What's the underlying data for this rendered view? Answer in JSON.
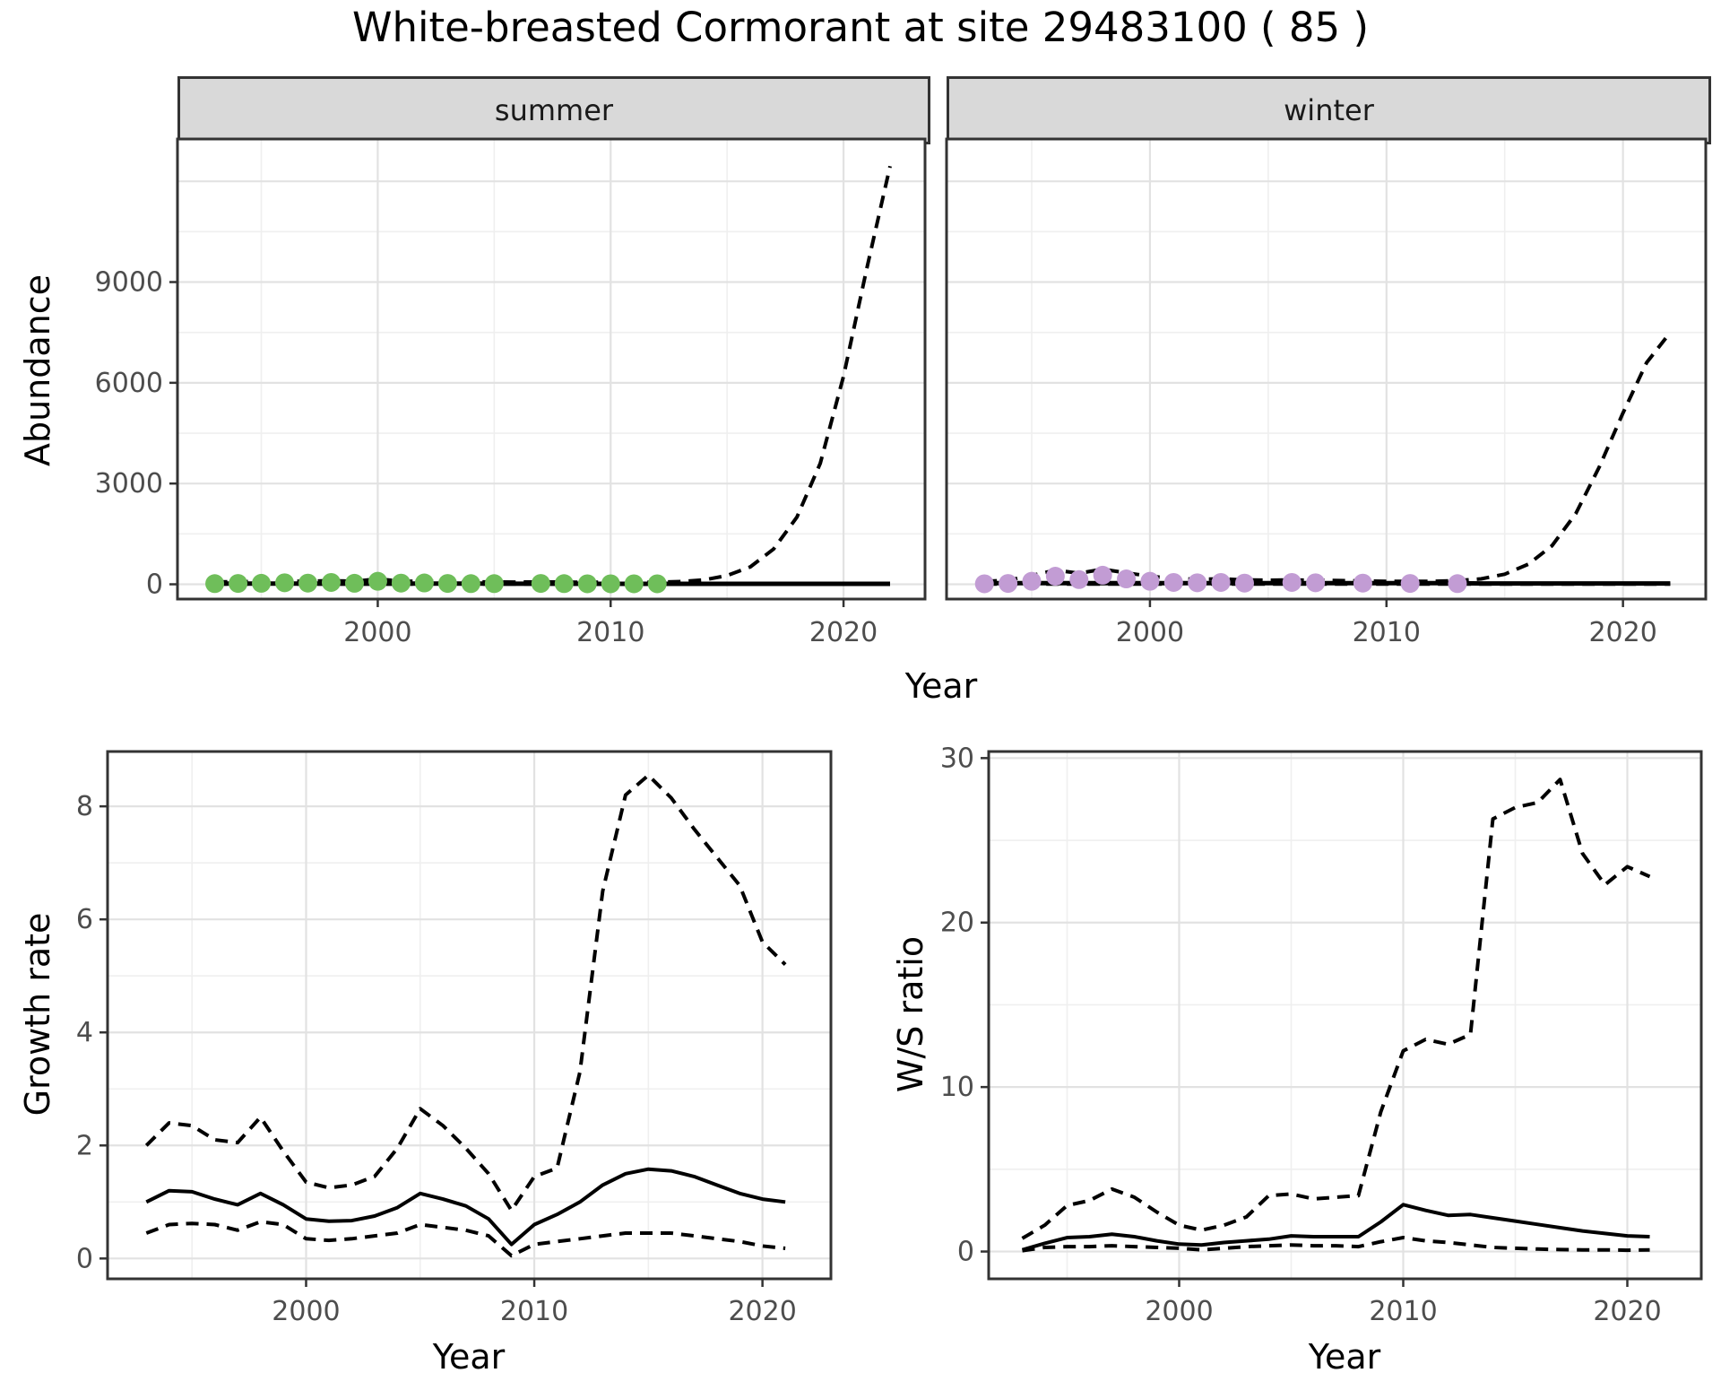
{
  "title": "White-breasted Cormorant at site 29483100 ( 85 )",
  "facets": {
    "summer": "summer",
    "winter": "winter"
  },
  "axis_labels": {
    "top_y": "Abundance",
    "top_x": "Year",
    "bottom_left_y": "Growth rate",
    "bottom_left_x": "Year",
    "bottom_right_y": "W/S ratio",
    "bottom_right_x": "Year"
  },
  "colors": {
    "summer_points": "#6FBE5A",
    "winter_points": "#C29CD4",
    "line": "#000000",
    "grid_major": "#E2E2E2",
    "grid_minor": "#EFEFEF",
    "strip_bg": "#D9D9D9",
    "panel_border": "#333333",
    "tick_label": "#4D4D4D"
  },
  "chart_data": [
    {
      "type": "line",
      "facet": "summer",
      "title": "",
      "xlabel": "Year",
      "ylabel": "Abundance",
      "xlim": [
        1991.4,
        2023.5
      ],
      "ylim": [
        -440,
        13260
      ],
      "x_ticks": [
        2000,
        2010,
        2020
      ],
      "x_minor": [
        1995,
        2005,
        2015
      ],
      "y_ticks": [
        0,
        3000,
        6000,
        9000
      ],
      "y_minor": [
        1500,
        4500,
        7500,
        10500
      ],
      "y_grid_extra": [
        12000
      ],
      "grid": true,
      "legend": "none",
      "series": [
        {
          "name": "lower_ci",
          "style": "dashed",
          "x": [
            1993,
            1994,
            1995,
            1996,
            1997,
            1998,
            1999,
            2000,
            2001,
            2002,
            2003,
            2004,
            2005,
            2006,
            2007,
            2008,
            2009,
            2010,
            2011,
            2012,
            2013,
            2014,
            2015,
            2016,
            2017,
            2018,
            2019,
            2020,
            2021,
            2022
          ],
          "y": [
            6,
            6,
            6,
            6,
            6,
            6,
            6,
            6,
            6,
            6,
            6,
            6,
            6,
            6,
            6,
            6,
            6,
            6,
            6,
            6,
            6,
            6,
            6,
            6,
            6,
            6,
            6,
            6,
            6,
            6
          ]
        },
        {
          "name": "upper_ci",
          "style": "dashed",
          "x": [
            1993,
            1994,
            1995,
            1996,
            1997,
            1998,
            1999,
            2000,
            2001,
            2002,
            2003,
            2004,
            2005,
            2006,
            2007,
            2008,
            2009,
            2010,
            2011,
            2012,
            2013,
            2014,
            2015,
            2016,
            2017,
            2018,
            2019,
            2020,
            2021,
            2022
          ],
          "y": [
            70,
            75,
            85,
            95,
            90,
            110,
            85,
            160,
            90,
            95,
            75,
            70,
            70,
            65,
            70,
            65,
            60,
            60,
            60,
            60,
            80,
            130,
            260,
            520,
            1050,
            2000,
            3600,
            6200,
            9400,
            12450
          ]
        },
        {
          "name": "median",
          "style": "solid",
          "x": [
            1993,
            1994,
            1995,
            1996,
            1997,
            1998,
            1999,
            2000,
            2001,
            2002,
            2003,
            2004,
            2005,
            2006,
            2007,
            2008,
            2009,
            2010,
            2011,
            2012,
            2013,
            2014,
            2015,
            2016,
            2017,
            2018,
            2019,
            2020,
            2021,
            2022
          ],
          "y": [
            20,
            20,
            20,
            20,
            20,
            20,
            20,
            20,
            20,
            20,
            20,
            20,
            20,
            18,
            18,
            18,
            15,
            15,
            15,
            15,
            15,
            15,
            15,
            15,
            15,
            15,
            15,
            15,
            15,
            15
          ]
        },
        {
          "name": "observed",
          "style": "points",
          "color": "#6FBE5A",
          "x": [
            1993,
            1994,
            1995,
            1996,
            1997,
            1998,
            1999,
            2000,
            2001,
            2002,
            2003,
            2004,
            2005,
            2007,
            2008,
            2009,
            2010,
            2011,
            2012
          ],
          "y": [
            20,
            25,
            30,
            45,
            35,
            55,
            30,
            90,
            35,
            40,
            25,
            20,
            20,
            25,
            20,
            15,
            15,
            15,
            15
          ]
        }
      ]
    },
    {
      "type": "line",
      "facet": "winter",
      "title": "",
      "xlabel": "Year",
      "ylabel": "Abundance",
      "xlim": [
        1991.4,
        2023.5
      ],
      "ylim": [
        -440,
        13260
      ],
      "x_ticks": [
        2000,
        2010,
        2020
      ],
      "x_minor": [
        1995,
        2005,
        2015
      ],
      "y_ticks": [
        0,
        3000,
        6000,
        9000
      ],
      "y_minor": [
        1500,
        4500,
        7500,
        10500
      ],
      "y_grid_extra": [
        12000
      ],
      "grid": true,
      "legend": "none",
      "series": [
        {
          "name": "lower_ci",
          "style": "dashed",
          "x": [
            1993,
            1994,
            1995,
            1996,
            1997,
            1998,
            1999,
            2000,
            2001,
            2002,
            2003,
            2004,
            2005,
            2006,
            2007,
            2008,
            2009,
            2010,
            2011,
            2012,
            2013,
            2014,
            2015,
            2016,
            2017,
            2018,
            2019,
            2020,
            2021,
            2022
          ],
          "y": [
            8,
            8,
            8,
            8,
            8,
            8,
            8,
            8,
            8,
            8,
            8,
            8,
            8,
            8,
            8,
            8,
            8,
            8,
            8,
            8,
            8,
            8,
            8,
            8,
            8,
            8,
            8,
            8,
            8,
            8
          ]
        },
        {
          "name": "upper_ci",
          "style": "dashed",
          "x": [
            1993,
            1994,
            1995,
            1996,
            1997,
            1998,
            1999,
            2000,
            2001,
            2002,
            2003,
            2004,
            2005,
            2006,
            2007,
            2008,
            2009,
            2010,
            2011,
            2012,
            2013,
            2014,
            2015,
            2016,
            2017,
            2018,
            2019,
            2020,
            2021,
            2022
          ],
          "y": [
            90,
            120,
            260,
            420,
            330,
            450,
            340,
            240,
            170,
            150,
            160,
            130,
            120,
            130,
            120,
            110,
            100,
            90,
            85,
            90,
            110,
            160,
            300,
            600,
            1150,
            2100,
            3500,
            5100,
            6600,
            7500
          ]
        },
        {
          "name": "median",
          "style": "solid",
          "x": [
            1993,
            1994,
            1995,
            1996,
            1997,
            1998,
            1999,
            2000,
            2001,
            2002,
            2003,
            2004,
            2005,
            2006,
            2007,
            2008,
            2009,
            2010,
            2011,
            2012,
            2013,
            2014,
            2015,
            2016,
            2017,
            2018,
            2019,
            2020,
            2021,
            2022
          ],
          "y": [
            35,
            35,
            35,
            35,
            35,
            35,
            35,
            35,
            35,
            35,
            35,
            35,
            35,
            35,
            35,
            35,
            35,
            35,
            35,
            35,
            35,
            25,
            25,
            25,
            25,
            25,
            25,
            25,
            25,
            25
          ]
        },
        {
          "name": "observed",
          "style": "points",
          "color": "#C29CD4",
          "x": [
            1993,
            1994,
            1995,
            1996,
            1997,
            1998,
            1999,
            2000,
            2001,
            2002,
            2003,
            2004,
            2006,
            2007,
            2009,
            2011,
            2013
          ],
          "y": [
            15,
            25,
            90,
            240,
            140,
            270,
            160,
            90,
            55,
            45,
            55,
            35,
            55,
            45,
            35,
            25,
            20
          ]
        }
      ]
    },
    {
      "type": "line",
      "facet": "",
      "title": "",
      "xlabel": "Year",
      "ylabel": "Growth rate",
      "xlim": [
        1991.3,
        2023.0
      ],
      "ylim": [
        -0.36,
        8.97
      ],
      "x_ticks": [
        2000,
        2010,
        2020
      ],
      "x_minor": [
        1995,
        2005,
        2015
      ],
      "y_ticks": [
        0,
        2,
        4,
        6,
        8
      ],
      "y_minor": [
        1,
        3,
        5,
        7
      ],
      "y_grid_extra": [],
      "grid": true,
      "legend": "none",
      "series": [
        {
          "name": "lower_ci",
          "style": "dashed",
          "x": [
            1993,
            1994,
            1995,
            1996,
            1997,
            1998,
            1999,
            2000,
            2001,
            2002,
            2003,
            2004,
            2005,
            2006,
            2007,
            2008,
            2009,
            2010,
            2011,
            2012,
            2013,
            2014,
            2015,
            2016,
            2017,
            2018,
            2019,
            2020,
            2021
          ],
          "y": [
            0.45,
            0.6,
            0.62,
            0.6,
            0.5,
            0.65,
            0.6,
            0.35,
            0.32,
            0.35,
            0.4,
            0.45,
            0.6,
            0.55,
            0.5,
            0.4,
            0.05,
            0.25,
            0.3,
            0.35,
            0.4,
            0.45,
            0.45,
            0.45,
            0.4,
            0.35,
            0.3,
            0.22,
            0.18
          ]
        },
        {
          "name": "upper_ci",
          "style": "dashed",
          "x": [
            1993,
            1994,
            1995,
            1996,
            1997,
            1998,
            1999,
            2000,
            2001,
            2002,
            2003,
            2004,
            2005,
            2006,
            2007,
            2008,
            2009,
            2010,
            2011,
            2012,
            2013,
            2014,
            2015,
            2016,
            2017,
            2018,
            2019,
            2020,
            2021
          ],
          "y": [
            2.0,
            2.4,
            2.35,
            2.1,
            2.05,
            2.5,
            1.9,
            1.35,
            1.25,
            1.3,
            1.45,
            1.95,
            2.65,
            2.35,
            1.95,
            1.5,
            0.85,
            1.45,
            1.6,
            3.3,
            6.5,
            8.2,
            8.55,
            8.15,
            7.6,
            7.1,
            6.6,
            5.6,
            5.2
          ]
        },
        {
          "name": "median",
          "style": "solid",
          "x": [
            1993,
            1994,
            1995,
            1996,
            1997,
            1998,
            1999,
            2000,
            2001,
            2002,
            2003,
            2004,
            2005,
            2006,
            2007,
            2008,
            2009,
            2010,
            2011,
            2012,
            2013,
            2014,
            2015,
            2016,
            2017,
            2018,
            2019,
            2020,
            2021
          ],
          "y": [
            1.0,
            1.2,
            1.18,
            1.05,
            0.95,
            1.15,
            0.95,
            0.7,
            0.66,
            0.67,
            0.75,
            0.9,
            1.15,
            1.05,
            0.93,
            0.7,
            0.25,
            0.6,
            0.78,
            1.0,
            1.3,
            1.5,
            1.58,
            1.55,
            1.45,
            1.3,
            1.15,
            1.05,
            1.0
          ]
        }
      ]
    },
    {
      "type": "line",
      "facet": "",
      "title": "",
      "xlabel": "Year",
      "ylabel": "W/S ratio",
      "xlim": [
        1991.5,
        2023.3
      ],
      "ylim": [
        -1.66,
        30.4
      ],
      "x_ticks": [
        2000,
        2010,
        2020
      ],
      "x_minor": [
        1995,
        2005,
        2015
      ],
      "y_ticks": [
        0,
        10,
        20,
        30
      ],
      "y_minor": [
        5,
        15,
        25
      ],
      "y_grid_extra": [],
      "grid": true,
      "legend": "none",
      "series": [
        {
          "name": "lower_ci",
          "style": "dashed",
          "x": [
            1993,
            1994,
            1995,
            1996,
            1997,
            1998,
            1999,
            2000,
            2001,
            2002,
            2003,
            2004,
            2005,
            2006,
            2007,
            2008,
            2009,
            2010,
            2011,
            2012,
            2013,
            2014,
            2015,
            2016,
            2017,
            2018,
            2019,
            2020,
            2021
          ],
          "y": [
            0.05,
            0.25,
            0.3,
            0.3,
            0.35,
            0.3,
            0.25,
            0.2,
            0.1,
            0.2,
            0.3,
            0.35,
            0.4,
            0.35,
            0.35,
            0.3,
            0.6,
            0.85,
            0.65,
            0.55,
            0.4,
            0.25,
            0.2,
            0.15,
            0.12,
            0.1,
            0.1,
            0.08,
            0.1
          ]
        },
        {
          "name": "upper_ci",
          "style": "dashed",
          "x": [
            1993,
            1994,
            1995,
            1996,
            1997,
            1998,
            1999,
            2000,
            2001,
            2002,
            2003,
            2004,
            2005,
            2006,
            2007,
            2008,
            2009,
            2010,
            2011,
            2012,
            2013,
            2014,
            2015,
            2016,
            2017,
            2018,
            2019,
            2020,
            2021
          ],
          "y": [
            0.8,
            1.6,
            2.8,
            3.1,
            3.8,
            3.3,
            2.4,
            1.6,
            1.3,
            1.6,
            2.1,
            3.4,
            3.5,
            3.2,
            3.3,
            3.4,
            8.5,
            12.2,
            12.9,
            12.6,
            13.2,
            26.3,
            27.0,
            27.3,
            28.7,
            24.2,
            22.3,
            23.4,
            22.8
          ]
        },
        {
          "name": "median",
          "style": "solid",
          "x": [
            1993,
            1994,
            1995,
            1996,
            1997,
            1998,
            1999,
            2000,
            2001,
            2002,
            2003,
            2004,
            2005,
            2006,
            2007,
            2008,
            2009,
            2010,
            2011,
            2012,
            2013,
            2014,
            2015,
            2016,
            2017,
            2018,
            2019,
            2020,
            2021
          ],
          "y": [
            0.1,
            0.5,
            0.85,
            0.9,
            1.05,
            0.9,
            0.65,
            0.45,
            0.4,
            0.55,
            0.65,
            0.75,
            0.95,
            0.9,
            0.9,
            0.9,
            1.8,
            2.85,
            2.5,
            2.2,
            2.25,
            2.05,
            1.85,
            1.65,
            1.45,
            1.25,
            1.1,
            0.95,
            0.9
          ]
        }
      ]
    }
  ]
}
